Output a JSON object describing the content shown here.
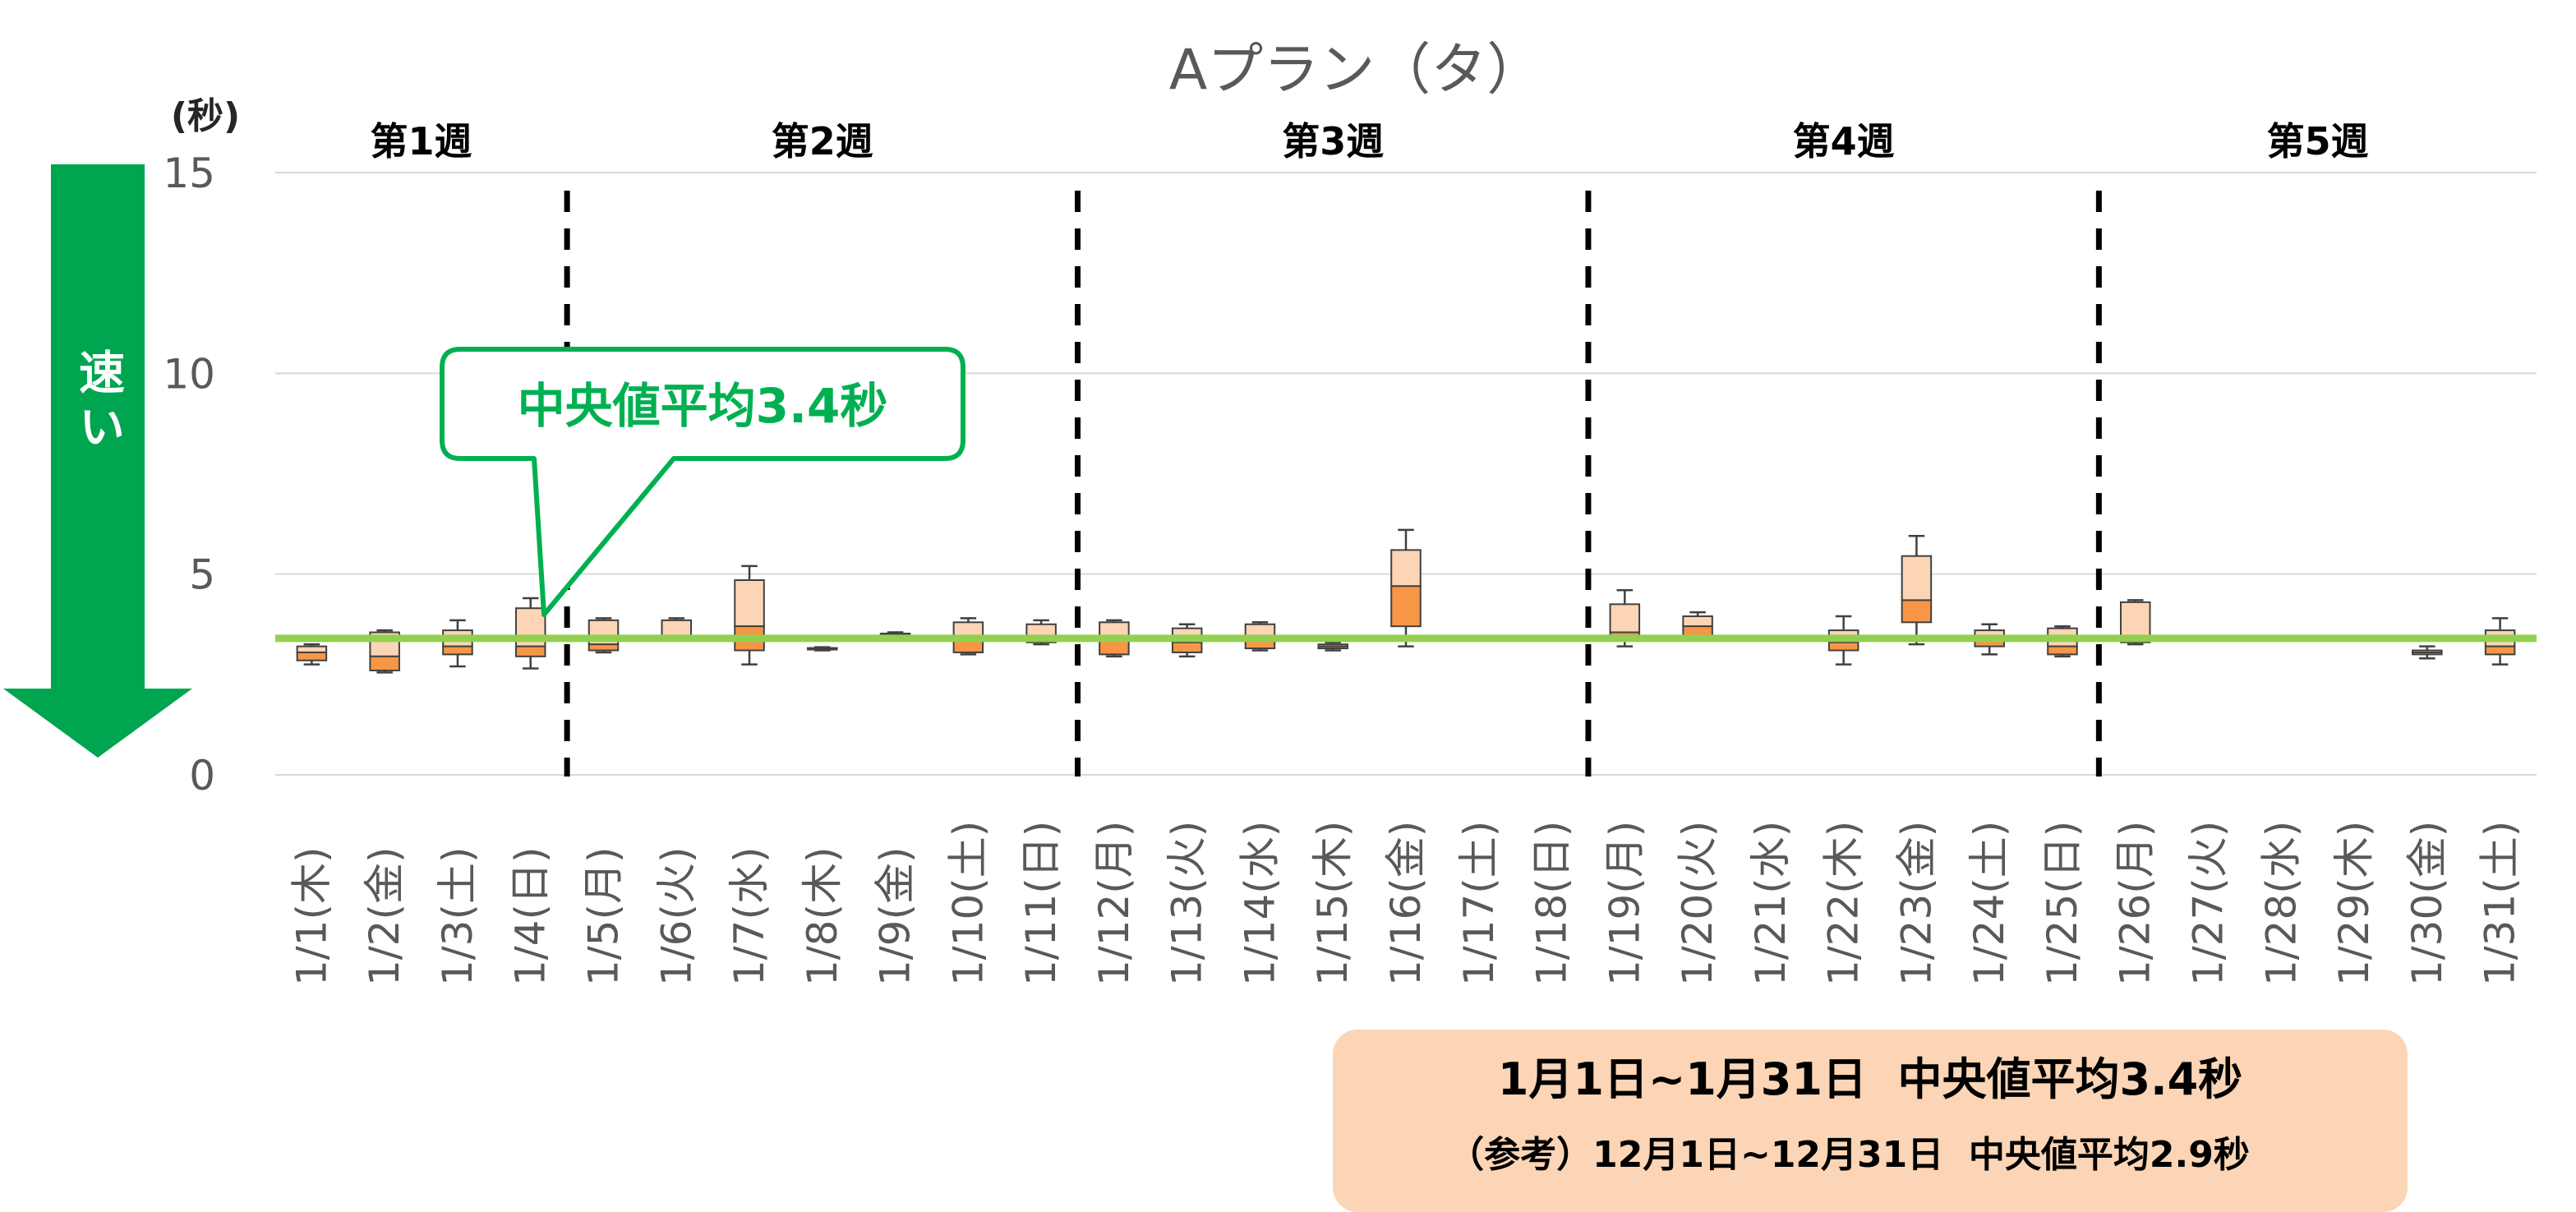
{
  "chart_data": {
    "type": "boxplot",
    "title": "Aプラン（タ）",
    "ylabel": "(秒)",
    "ylim": [
      0,
      15
    ],
    "yticks": [
      0,
      5,
      10,
      15
    ],
    "grid": true,
    "categories": [
      "1/1(木)",
      "1/2(金)",
      "1/3(土)",
      "1/4(日)",
      "1/5(月)",
      "1/6(火)",
      "1/7(水)",
      "1/8(木)",
      "1/9(金)",
      "1/10(土)",
      "1/11(日)",
      "1/12(月)",
      "1/13(火)",
      "1/14(水)",
      "1/15(木)",
      "1/16(金)",
      "1/17(土)",
      "1/18(日)",
      "1/19(月)",
      "1/20(火)",
      "1/21(水)",
      "1/22(木)",
      "1/23(金)",
      "1/24(土)",
      "1/25(日)",
      "1/26(月)",
      "1/27(火)",
      "1/28(水)",
      "1/29(木)",
      "1/30(金)",
      "1/31(土)"
    ],
    "boxes": [
      {
        "day": "1/1(木)",
        "min": 2.75,
        "q1": 2.85,
        "median": 3.05,
        "q3": 3.2,
        "max": 3.25
      },
      {
        "day": "1/2(金)",
        "min": 2.55,
        "q1": 2.6,
        "median": 2.95,
        "q3": 3.55,
        "max": 3.6
      },
      {
        "day": "1/3(土)",
        "min": 2.7,
        "q1": 3.0,
        "median": 3.2,
        "q3": 3.6,
        "max": 3.85
      },
      {
        "day": "1/4(日)",
        "min": 2.65,
        "q1": 2.95,
        "median": 3.2,
        "q3": 4.15,
        "max": 4.4
      },
      {
        "day": "1/5(月)",
        "min": 3.05,
        "q1": 3.1,
        "median": 3.25,
        "q3": 3.85,
        "max": 3.9
      },
      {
        "day": "1/6(火)",
        "min": 3.35,
        "q1": 3.4,
        "median": 3.45,
        "q3": 3.85,
        "max": 3.9
      },
      {
        "day": "1/7(水)",
        "min": 2.75,
        "q1": 3.1,
        "median": 3.7,
        "q3": 4.85,
        "max": 5.2
      },
      {
        "day": "1/8(木)",
        "min": 3.1,
        "q1": 3.12,
        "median": 3.14,
        "q3": 3.16,
        "max": 3.18
      },
      {
        "day": "1/9(金)",
        "min": 3.45,
        "q1": 3.48,
        "median": 3.5,
        "q3": 3.52,
        "max": 3.55
      },
      {
        "day": "1/10(土)",
        "min": 3.0,
        "q1": 3.05,
        "median": 3.4,
        "q3": 3.8,
        "max": 3.9
      },
      {
        "day": "1/11(日)",
        "min": 3.25,
        "q1": 3.3,
        "median": 3.45,
        "q3": 3.75,
        "max": 3.85
      },
      {
        "day": "1/12(月)",
        "min": 2.95,
        "q1": 3.0,
        "median": 3.4,
        "q3": 3.8,
        "max": 3.85
      },
      {
        "day": "1/13(火)",
        "min": 2.95,
        "q1": 3.05,
        "median": 3.3,
        "q3": 3.65,
        "max": 3.75
      },
      {
        "day": "1/14(水)",
        "min": 3.1,
        "q1": 3.15,
        "median": 3.4,
        "q3": 3.75,
        "max": 3.8
      },
      {
        "day": "1/15(木)",
        "min": 3.1,
        "q1": 3.15,
        "median": 3.2,
        "q3": 3.25,
        "max": 3.3
      },
      {
        "day": "1/16(金)",
        "min": 3.2,
        "q1": 3.7,
        "median": 4.7,
        "q3": 5.6,
        "max": 6.1
      },
      {
        "day": "1/19(月)",
        "min": 3.2,
        "q1": 3.45,
        "median": 3.55,
        "q3": 4.25,
        "max": 4.6
      },
      {
        "day": "1/20(火)",
        "min": 3.4,
        "q1": 3.45,
        "median": 3.7,
        "q3": 3.95,
        "max": 4.05
      },
      {
        "day": "1/22(木)",
        "min": 2.75,
        "q1": 3.1,
        "median": 3.3,
        "q3": 3.6,
        "max": 3.95
      },
      {
        "day": "1/23(金)",
        "min": 3.25,
        "q1": 3.8,
        "median": 4.35,
        "q3": 5.45,
        "max": 5.95
      },
      {
        "day": "1/24(土)",
        "min": 3.0,
        "q1": 3.2,
        "median": 3.45,
        "q3": 3.6,
        "max": 3.75
      },
      {
        "day": "1/25(日)",
        "min": 2.95,
        "q1": 3.0,
        "median": 3.2,
        "q3": 3.65,
        "max": 3.7
      },
      {
        "day": "1/26(月)",
        "min": 3.25,
        "q1": 3.3,
        "median": 3.4,
        "q3": 4.3,
        "max": 4.35
      },
      {
        "day": "1/30(金)",
        "min": 2.9,
        "q1": 3.0,
        "median": 3.05,
        "q3": 3.1,
        "max": 3.2
      },
      {
        "day": "1/31(土)",
        "min": 2.75,
        "q1": 3.0,
        "median": 3.2,
        "q3": 3.6,
        "max": 3.9
      }
    ],
    "reference_line": {
      "value": 3.4,
      "color": "#92d050"
    },
    "weeks": [
      {
        "label": "第1週",
        "from": 0,
        "to": 3
      },
      {
        "label": "第2週",
        "from": 4,
        "to": 10
      },
      {
        "label": "第3週",
        "from": 11,
        "to": 17
      },
      {
        "label": "第4週",
        "from": 18,
        "to": 24
      },
      {
        "label": "第5週",
        "from": 25,
        "to": 30
      }
    ],
    "colors": {
      "box_upper": "#fbd5b5",
      "box_lower": "#f79646",
      "box_stroke": "#404040",
      "grid": "#d9d9d9",
      "callout": "#00b050",
      "arrow": "#00a550",
      "summary_bg": "#fbd5b5"
    }
  },
  "arrow_label": "速い",
  "callout": {
    "text": "中央値平均3.4秒"
  },
  "summary": {
    "line1": "1月1日~1月31日  中央値平均3.4秒",
    "line2": "（参考）12月1日~12月31日  中央値平均2.9秒"
  }
}
